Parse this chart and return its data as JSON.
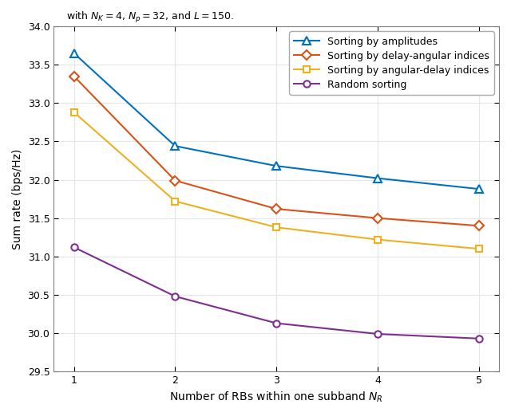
{
  "x": [
    1,
    2,
    3,
    4,
    5
  ],
  "series": [
    {
      "label": "Sorting by amplitudes",
      "color": "#0072BD",
      "marker": "^",
      "markersize": 7,
      "values": [
        33.65,
        32.44,
        32.18,
        32.02,
        31.88
      ]
    },
    {
      "label": "Sorting by delay-angular indices",
      "color": "#D95319",
      "marker": "D",
      "markersize": 6,
      "values": [
        33.35,
        31.99,
        31.62,
        31.5,
        31.4
      ]
    },
    {
      "label": "Sorting by angular-delay indices",
      "color": "#EDB120",
      "marker": "s",
      "markersize": 6,
      "values": [
        32.88,
        31.72,
        31.38,
        31.22,
        31.1
      ]
    },
    {
      "label": "Random sorting",
      "color": "#7E2F8E",
      "marker": "o",
      "markersize": 6,
      "values": [
        31.12,
        30.48,
        30.13,
        29.99,
        29.93
      ]
    }
  ],
  "xlabel": "Number of RBs within one subband $N_R$",
  "ylabel": "Sum rate (bps/Hz)",
  "ylim": [
    29.5,
    34.0
  ],
  "xlim": [
    0.8,
    5.2
  ],
  "yticks": [
    29.5,
    30.0,
    30.5,
    31.0,
    31.5,
    32.0,
    32.5,
    33.0,
    33.5,
    34.0
  ],
  "xticks": [
    1,
    2,
    3,
    4,
    5
  ],
  "grid": true,
  "legend_loc": "upper right",
  "bg_color": "#FFFFFF",
  "axes_bg": "#FFFFFF",
  "linewidth": 1.5,
  "top_title": "with $N_K = 4$, $N_p = 32$, and $L = 150$."
}
